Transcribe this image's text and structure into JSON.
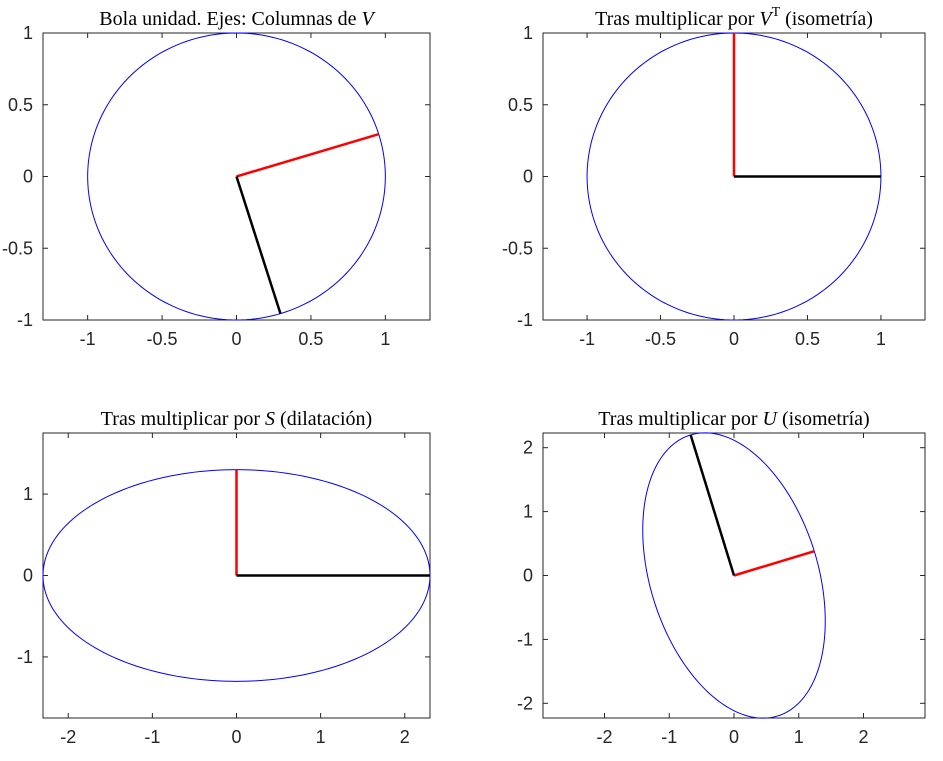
{
  "chart_data": [
    {
      "type": "line",
      "title": {
        "prefix": "Bola unidad. Ejes: Columnas de ",
        "symbol": "V",
        "sup": "",
        "suffix": ""
      },
      "xlim": [
        -1.3,
        1.3
      ],
      "ylim": [
        -1,
        1
      ],
      "xticks": [
        -1,
        -0.5,
        0,
        0.5,
        1
      ],
      "xtick_labels": [
        "-1",
        "-0.5",
        "0",
        "0.5",
        "1"
      ],
      "yticks": [
        -1,
        -0.5,
        0,
        0.5,
        1
      ],
      "ytick_labels": [
        "-1",
        "-0.5",
        "0",
        "0.5",
        "1"
      ],
      "ellipse": {
        "a": [
          1.0,
          0.0
        ],
        "b": [
          0.0,
          1.0
        ],
        "color": "#0000ff"
      },
      "vectors": [
        {
          "x": 0.955,
          "y": 0.295,
          "color": "#ff0000"
        },
        {
          "x": 0.295,
          "y": -0.955,
          "color": "#000000"
        }
      ],
      "grid": false
    },
    {
      "type": "line",
      "title": {
        "prefix": "Tras multiplicar por ",
        "symbol": "V",
        "sup": "T",
        "suffix": " (isometría)"
      },
      "xlim": [
        -1.3,
        1.3
      ],
      "ylim": [
        -1,
        1
      ],
      "xticks": [
        -1,
        -0.5,
        0,
        0.5,
        1
      ],
      "xtick_labels": [
        "-1",
        "-0.5",
        "0",
        "0.5",
        "1"
      ],
      "yticks": [
        -1,
        -0.5,
        0,
        0.5,
        1
      ],
      "ytick_labels": [
        "-1",
        "-0.5",
        "0",
        "0.5",
        "1"
      ],
      "ellipse": {
        "a": [
          1.0,
          0.0
        ],
        "b": [
          0.0,
          1.0
        ],
        "color": "#0000ff"
      },
      "vectors": [
        {
          "x": 0.0,
          "y": 1.0,
          "color": "#ff0000"
        },
        {
          "x": 1.0,
          "y": 0.0,
          "color": "#000000"
        }
      ],
      "grid": false
    },
    {
      "type": "line",
      "title": {
        "prefix": "Tras multiplicar por ",
        "symbol": "S",
        "sup": "",
        "suffix": " (dilatación)"
      },
      "xlim": [
        -2.3,
        2.3
      ],
      "ylim": [
        -1.75,
        1.75
      ],
      "xticks": [
        -2,
        -1,
        0,
        1,
        2
      ],
      "xtick_labels": [
        "-2",
        "-1",
        "0",
        "1",
        "2"
      ],
      "yticks": [
        -1,
        0,
        1
      ],
      "ytick_labels": [
        "-1",
        "0",
        "1"
      ],
      "ellipse": {
        "a": [
          2.3,
          0.0
        ],
        "b": [
          0.0,
          1.3
        ],
        "color": "#0000ff"
      },
      "vectors": [
        {
          "x": 0.0,
          "y": 1.3,
          "color": "#ff0000"
        },
        {
          "x": 2.3,
          "y": 0.0,
          "color": "#000000"
        }
      ],
      "grid": false
    },
    {
      "type": "line",
      "title": {
        "prefix": "Tras multiplicar por ",
        "symbol": "U",
        "sup": "",
        "suffix": " (isometría)"
      },
      "xlim": [
        -2.95,
        2.95
      ],
      "ylim": [
        -2.23,
        2.23
      ],
      "xticks": [
        -2,
        -1,
        0,
        1,
        2
      ],
      "xtick_labels": [
        "-2",
        "-1",
        "0",
        "1",
        "2"
      ],
      "yticks": [
        -2,
        -1,
        0,
        1,
        2
      ],
      "ytick_labels": [
        "-2",
        "-1",
        "0",
        "1",
        "2"
      ],
      "ellipse": {
        "a": [
          -0.67,
          2.2
        ],
        "b": [
          1.24,
          0.38
        ],
        "color": "#0000ff"
      },
      "vectors": [
        {
          "x": 1.24,
          "y": 0.38,
          "color": "#ff0000"
        },
        {
          "x": -0.67,
          "y": 2.2,
          "color": "#000000"
        }
      ],
      "grid": false
    }
  ]
}
